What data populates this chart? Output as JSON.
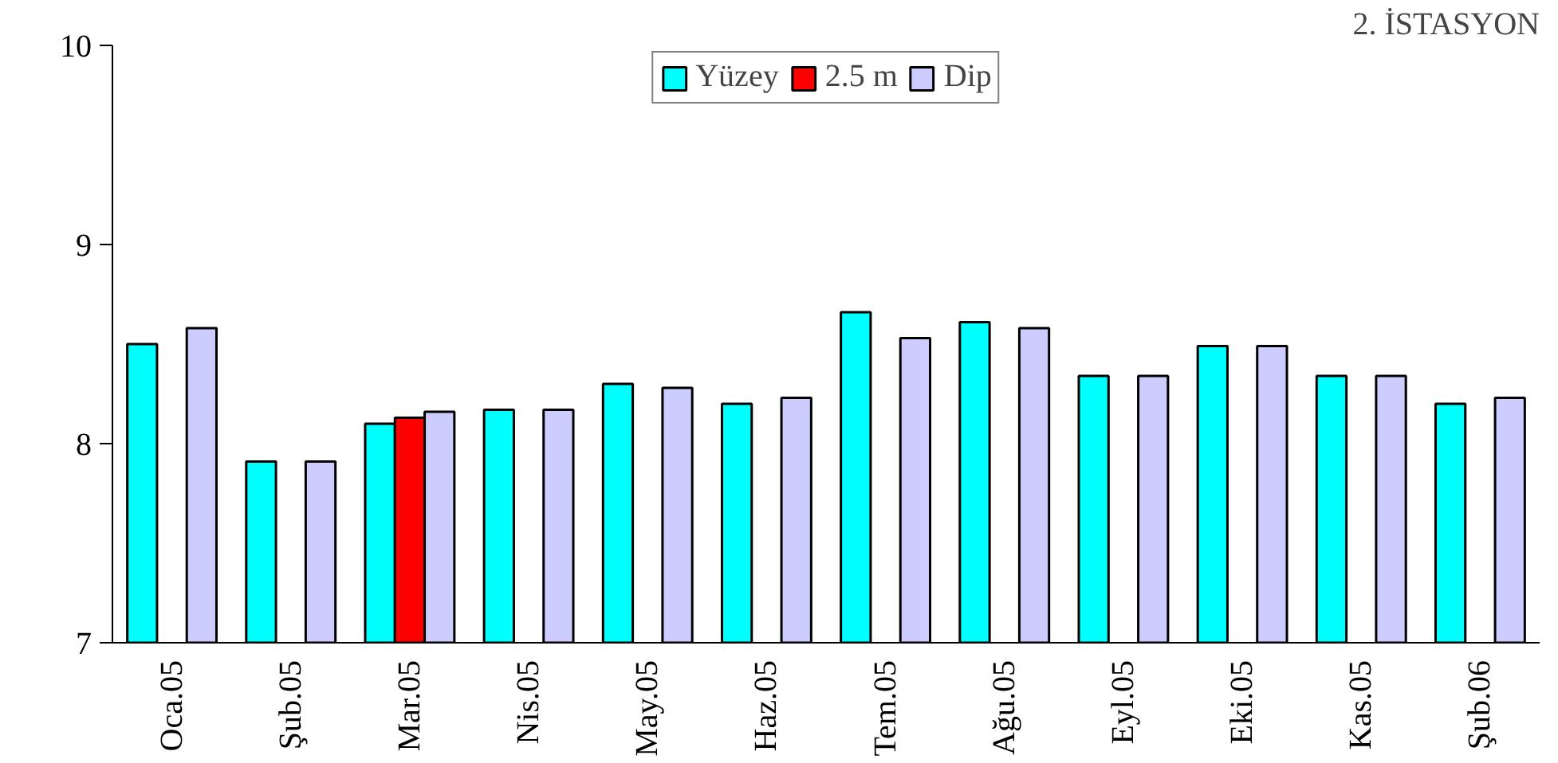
{
  "chart_data": {
    "type": "bar",
    "title": "2. İSTASYON",
    "categories": [
      "Oca.05",
      "Şub.05",
      "Mar.05",
      "Nis.05",
      "May.05",
      "Haz.05",
      "Tem.05",
      "Ağu.05",
      "Eyl.05",
      "Eki.05",
      "Kas.05",
      "Şub.06"
    ],
    "series": [
      {
        "name": "Yüzey",
        "color": "#00ffff",
        "values": [
          8.5,
          7.91,
          8.1,
          8.17,
          8.3,
          8.2,
          8.66,
          8.61,
          8.34,
          8.49,
          8.34,
          8.2
        ]
      },
      {
        "name": "2.5 m",
        "color": "#ff0000",
        "values": [
          null,
          null,
          8.13,
          null,
          null,
          null,
          null,
          null,
          null,
          null,
          null,
          null
        ]
      },
      {
        "name": "Dip",
        "color": "#ccccff",
        "values": [
          8.58,
          7.91,
          8.16,
          8.17,
          8.28,
          8.23,
          8.53,
          8.58,
          8.34,
          8.49,
          8.34,
          8.23
        ]
      }
    ],
    "ylim": [
      7,
      10
    ],
    "yticks": [
      7,
      8,
      9,
      10
    ],
    "grid": false,
    "legend": "top"
  }
}
